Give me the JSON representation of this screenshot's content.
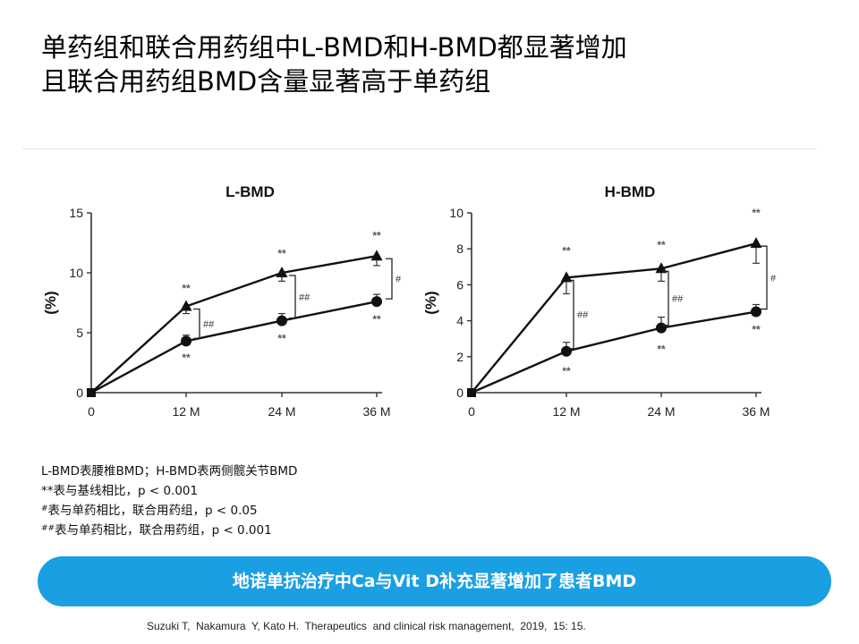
{
  "slide": {
    "title_line1": "单药组和联合用药组中L-BMD和H-BMD都显著增加",
    "title_line2": "且联合用药组BMD含量显著高于单药组",
    "notes": [
      {
        "sup": "",
        "text": "L-BMD表腰椎BMD；H-BMD表两侧髋关节BMD"
      },
      {
        "sup": "",
        "text": "**表与基线相比，p < 0.001"
      },
      {
        "sup": "#",
        "text": "表与单药相比，联合用药组，p < 0.05"
      },
      {
        "sup": "##",
        "text": "表与单药相比，联合用药组，p < 0.001"
      }
    ],
    "banner": "地诺单抗治疗中Ca与Vit D补充显著增加了患者BMD",
    "reference": "Suzuki T,  Nakamura  Y, Kato H.  Therapeutics  and clinical risk management,  2019,  15: 15."
  },
  "chart_data": [
    {
      "type": "line",
      "title": "L-BMD",
      "ylabel": "(%)",
      "xlabel": "",
      "categories": [
        "0",
        "12 M",
        "24 M",
        "36 M"
      ],
      "ylim": [
        0,
        15
      ],
      "yticks": [
        "0",
        "5",
        "10",
        "15"
      ],
      "series": [
        {
          "marker": "triangle",
          "values": [
            0,
            7.2,
            10.0,
            11.4
          ],
          "errors": [
            0,
            0.6,
            0.7,
            0.8
          ],
          "labels": [
            "",
            "**",
            "**",
            "**"
          ]
        },
        {
          "marker": "circle",
          "values": [
            0,
            4.3,
            6.0,
            7.6
          ],
          "errors": [
            0,
            0.5,
            0.6,
            0.6
          ],
          "labels": [
            "",
            "**",
            "**",
            "**"
          ]
        }
      ],
      "brackets": [
        "",
        "##",
        "##",
        "#"
      ]
    },
    {
      "type": "line",
      "title": "H-BMD",
      "ylabel": "(%)",
      "xlabel": "",
      "categories": [
        "0",
        "12 M",
        "24 M",
        "36 M"
      ],
      "ylim": [
        0,
        10
      ],
      "yticks": [
        "0",
        "2",
        "4",
        "6",
        "8",
        "10"
      ],
      "series": [
        {
          "marker": "triangle",
          "values": [
            0,
            6.4,
            6.9,
            8.3
          ],
          "errors": [
            0,
            0.9,
            0.7,
            1.1
          ],
          "labels": [
            "",
            "**",
            "**",
            "**"
          ]
        },
        {
          "marker": "circle",
          "values": [
            0,
            2.3,
            3.6,
            4.5
          ],
          "errors": [
            0,
            0.5,
            0.6,
            0.4
          ],
          "labels": [
            "",
            "**",
            "**",
            "**"
          ]
        }
      ],
      "brackets": [
        "",
        "##",
        "##",
        "#"
      ]
    }
  ]
}
